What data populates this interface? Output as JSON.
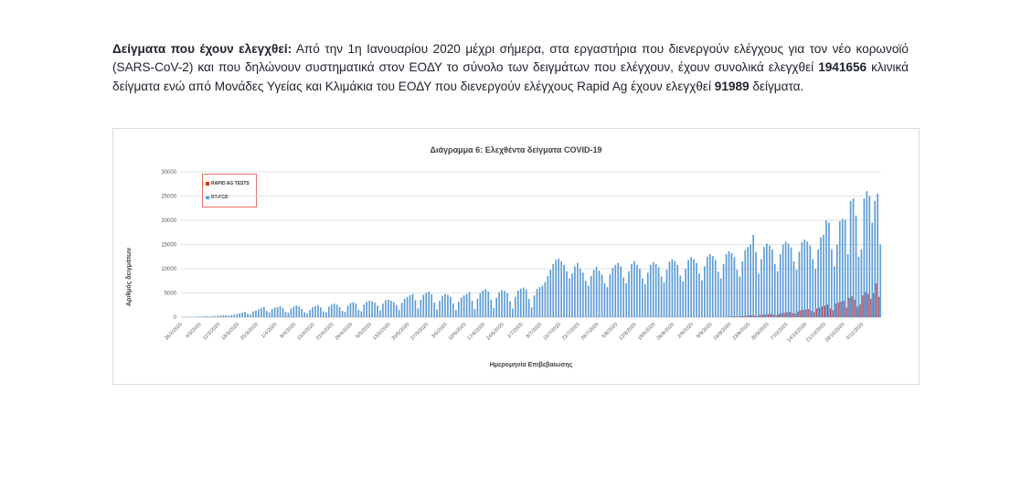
{
  "page": {
    "paragraph": {
      "lead_bold": "Δείγματα που έχουν ελεγχθεί:",
      "body_1": " Από την 1η Ιανουαρίου 2020 μέχρι σήμερα, στα εργαστήρια που διενεργούν ελέγχους για τον νέο κορωνοϊό (SARS-CoV-2) και που δηλώνουν συστηματικά στον ΕΟΔΥ το σύνολο των δειγμάτων που ελέγχουν, έχουν συνολικά ελεγχθεί ",
      "total_clinical": "1941656",
      "body_2": " κλινικά δείγματα ενώ από Μονάδες Υγείας και Κλιμάκια του ΕΟΔΥ που διενεργούν ελέγχους Rapid Ag έχουν ελεγχθεί ",
      "total_rapid": "91989",
      "body_3": " δείγματα."
    }
  },
  "chart_data": {
    "type": "bar",
    "title": "Διάγραμμα 6: Ελεχθέντα δείγματα COVID-19",
    "xlabel": "Ημερομηνία Επιβεβαίωσης",
    "ylabel": "Αριθμός δειγμάτων",
    "ylim": [
      0,
      30000
    ],
    "ytick_step": 5000,
    "yticks": [
      "0",
      "5000",
      "10000",
      "15000",
      "20000",
      "25000",
      "30000"
    ],
    "grid": true,
    "legend_position": "upper-left",
    "legend_border_color": "#e57368",
    "gridline_color": "#d9d9d9",
    "axis_line_color": "#bfbfbf",
    "tick_label_color": "#595959",
    "x_label_every": 7,
    "x_labels": [
      "26/2/2020",
      "4/3/2020",
      "11/3/2020",
      "18/3/2020",
      "25/3/2020",
      "1/4/2020",
      "8/4/2020",
      "15/4/2020",
      "22/4/2020",
      "29/4/2020",
      "6/5/2020",
      "13/5/2020",
      "20/5/2020",
      "27/5/2020",
      "3/6/2020",
      "10/6/2020",
      "17/6/2020",
      "24/6/2020",
      "1/7/2020",
      "8/7/2020",
      "15/7/2020",
      "22/7/2020",
      "29/7/2020",
      "5/8/2020",
      "12/8/2020",
      "19/8/2020",
      "26/8/2020",
      "2/9/2020",
      "9/9/2020",
      "16/9/2020",
      "23/9/2020",
      "30/9/2020",
      "7/10/2020",
      "14/10/2020",
      "21/10/2020",
      "28/10/2020",
      "4/11/2020"
    ],
    "legend": [
      {
        "name": "RAPID AG TESTS",
        "color": "#e0301e"
      },
      {
        "name": "RT-PCR",
        "color": "#5b9bd5"
      }
    ],
    "series": [
      {
        "name": "RAPID AG TESTS",
        "color": "#c2404a",
        "values": [
          0,
          0,
          0,
          0,
          0,
          0,
          0,
          0,
          0,
          0,
          0,
          0,
          0,
          0,
          0,
          0,
          0,
          0,
          0,
          0,
          0,
          0,
          0,
          0,
          0,
          0,
          0,
          0,
          0,
          0,
          0,
          0,
          0,
          0,
          0,
          0,
          0,
          0,
          0,
          0,
          0,
          0,
          0,
          0,
          0,
          0,
          0,
          0,
          0,
          0,
          0,
          0,
          0,
          0,
          0,
          0,
          0,
          0,
          0,
          0,
          0,
          0,
          0,
          0,
          0,
          0,
          0,
          0,
          0,
          0,
          0,
          0,
          0,
          0,
          0,
          0,
          0,
          0,
          0,
          0,
          0,
          0,
          0,
          0,
          0,
          0,
          0,
          0,
          0,
          0,
          0,
          0,
          0,
          0,
          0,
          0,
          0,
          0,
          0,
          0,
          0,
          0,
          0,
          0,
          0,
          0,
          0,
          0,
          0,
          0,
          0,
          0,
          0,
          0,
          0,
          0,
          0,
          0,
          0,
          0,
          0,
          0,
          0,
          0,
          0,
          0,
          0,
          0,
          0,
          0,
          0,
          0,
          0,
          0,
          0,
          0,
          0,
          0,
          0,
          0,
          0,
          0,
          0,
          0,
          0,
          0,
          0,
          0,
          0,
          0,
          0,
          0,
          0,
          0,
          0,
          0,
          0,
          0,
          0,
          0,
          0,
          0,
          0,
          0,
          0,
          0,
          0,
          0,
          0,
          0,
          0,
          0,
          0,
          0,
          0,
          0,
          0,
          0,
          0,
          0,
          0,
          0,
          0,
          0,
          0,
          0,
          0,
          0,
          0,
          0,
          0,
          0,
          0,
          0,
          0,
          0,
          0,
          0,
          0,
          0,
          0,
          0,
          0,
          100,
          150,
          120,
          80,
          200,
          250,
          300,
          350,
          400,
          300,
          200,
          450,
          500,
          550,
          600,
          650,
          500,
          400,
          700,
          800,
          900,
          1000,
          1100,
          850,
          700,
          1200,
          1400,
          1500,
          1600,
          1700,
          1300,
          1000,
          1800,
          2000,
          2200,
          2400,
          2600,
          1800,
          1400,
          2800,
          3000,
          3200,
          3400,
          2000,
          4000,
          4300,
          3600,
          2200,
          2600,
          4500,
          5200,
          4800,
          3800,
          5000,
          7000,
          4200
        ]
      },
      {
        "name": "RT-PCR",
        "color": "#5b9bd5",
        "values": [
          40,
          60,
          80,
          50,
          70,
          90,
          120,
          150,
          180,
          160,
          140,
          200,
          250,
          300,
          350,
          420,
          380,
          300,
          450,
          550,
          650,
          800,
          950,
          1100,
          700,
          600,
          1200,
          1400,
          1600,
          1900,
          2100,
          1300,
          1000,
          1700,
          2000,
          2100,
          2300,
          1900,
          1100,
          900,
          1800,
          2200,
          2400,
          2200,
          1700,
          1000,
          800,
          1500,
          2100,
          2300,
          2500,
          2000,
          1200,
          1000,
          2200,
          2600,
          2800,
          2600,
          2100,
          1300,
          1100,
          2400,
          2900,
          3100,
          2800,
          1500,
          1200,
          2600,
          3200,
          3400,
          3300,
          3000,
          2400,
          1400,
          2800,
          3500,
          3600,
          3400,
          3100,
          2500,
          1500,
          3000,
          3800,
          4200,
          4500,
          4800,
          3500,
          1800,
          3600,
          4600,
          5000,
          5300,
          4700,
          3000,
          1600,
          3400,
          4400,
          4800,
          4600,
          4200,
          2800,
          1500,
          3200,
          4100,
          4500,
          4800,
          5200,
          3400,
          1700,
          3800,
          5000,
          5500,
          5800,
          5300,
          3600,
          1900,
          4000,
          5200,
          5600,
          5400,
          5000,
          3300,
          1800,
          4200,
          5500,
          5900,
          6100,
          5700,
          3800,
          2000,
          4500,
          5800,
          6200,
          6500,
          7200,
          8500,
          9800,
          11000,
          11800,
          12100,
          11500,
          10800,
          9500,
          8000,
          9000,
          10500,
          11200,
          10000,
          9200,
          7500,
          6500,
          8500,
          9800,
          10400,
          9600,
          8800,
          7000,
          6200,
          8800,
          10200,
          10800,
          11200,
          10500,
          8200,
          7000,
          9500,
          11000,
          11600,
          10800,
          10000,
          8000,
          6800,
          9200,
          10800,
          11400,
          11000,
          10300,
          8400,
          7200,
          9800,
          11500,
          12000,
          11600,
          10800,
          8600,
          7400,
          10000,
          11800,
          12400,
          12000,
          11200,
          9000,
          7600,
          10500,
          12500,
          13000,
          12600,
          11800,
          9400,
          8000,
          11000,
          13000,
          13600,
          13200,
          12400,
          9800,
          8400,
          11500,
          13800,
          14500,
          15000,
          17000,
          13500,
          9000,
          12000,
          14500,
          15200,
          14800,
          14000,
          11000,
          9500,
          13000,
          15000,
          15600,
          15200,
          14400,
          11500,
          9800,
          13500,
          15500,
          16000,
          15600,
          14800,
          12000,
          10000,
          14000,
          16500,
          17000,
          20000,
          19500,
          14000,
          10500,
          15000,
          19800,
          20300,
          20100,
          13000,
          24000,
          24500,
          21000,
          12500,
          14000,
          24500,
          26000,
          25000,
          19500,
          24000,
          25500,
          15000
        ]
      }
    ]
  }
}
